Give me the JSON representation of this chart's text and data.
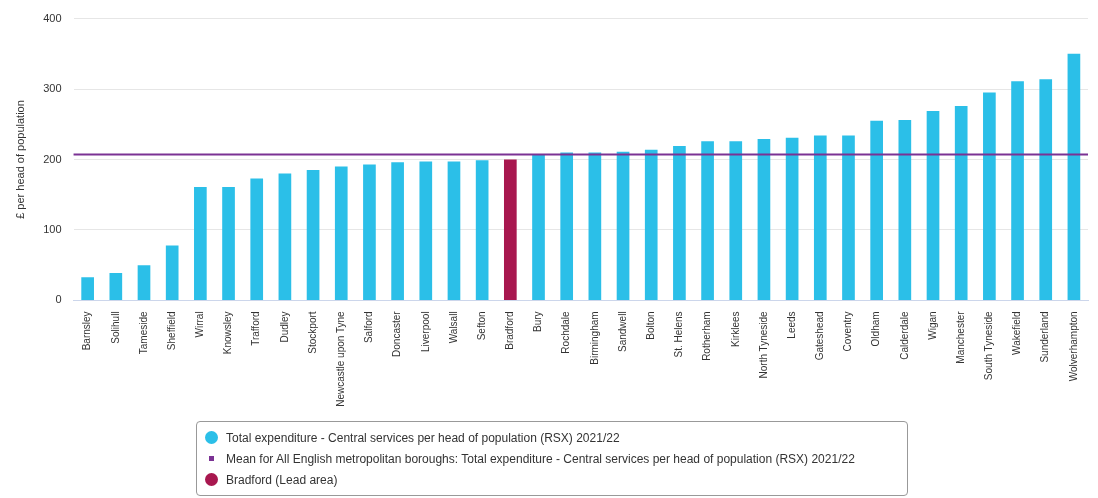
{
  "chart_data": {
    "type": "bar",
    "ylabel": "£ per head of population",
    "categories": [
      "Barnsley",
      "Solihull",
      "Tameside",
      "Sheffield",
      "Wirral",
      "Knowsley",
      "Trafford",
      "Dudley",
      "Stockport",
      "Newcastle upon Tyne",
      "Salford",
      "Doncaster",
      "Liverpool",
      "Walsall",
      "Sefton",
      "Bradford",
      "Bury",
      "Rochdale",
      "Birmingham",
      "Sandwell",
      "Bolton",
      "St. Helens",
      "Rotherham",
      "Kirklees",
      "North Tyneside",
      "Leeds",
      "Gateshead",
      "Coventry",
      "Oldham",
      "Calderdale",
      "Wigan",
      "Manchester",
      "South Tyneside",
      "Wakefield",
      "Sunderland",
      "Wolverhampton"
    ],
    "series": [
      {
        "name": "Total expenditure - Central services per head of population (RSX) 2021/22",
        "color": "#2bbfe8",
        "values": [
          33,
          39,
          50,
          78,
          161,
          161,
          173,
          180,
          185,
          190,
          193,
          196,
          197,
          197,
          199,
          null,
          207,
          210,
          210,
          211,
          214,
          219,
          226,
          226,
          229,
          231,
          234,
          234,
          255,
          256,
          269,
          276,
          295,
          311,
          314,
          350
        ]
      },
      {
        "name": "Bradford (Lead area)",
        "color": "#a8174f",
        "values": [
          null,
          null,
          null,
          null,
          null,
          null,
          null,
          null,
          null,
          null,
          null,
          null,
          null,
          null,
          null,
          200,
          null,
          null,
          null,
          null,
          null,
          null,
          null,
          null,
          null,
          null,
          null,
          null,
          null,
          null,
          null,
          null,
          null,
          null,
          null,
          null
        ]
      }
    ],
    "ref_lines": [
      {
        "axis": "y",
        "value": 207,
        "label": "Mean for All English metropolitan boroughs: Total expenditure - Central services per head of population (RSX) 2021/22",
        "color": "#7b3294"
      }
    ],
    "ylim": [
      0,
      400
    ],
    "yticks": [
      0,
      100,
      200,
      300,
      400
    ],
    "grid": "y",
    "legend": "bottom"
  }
}
